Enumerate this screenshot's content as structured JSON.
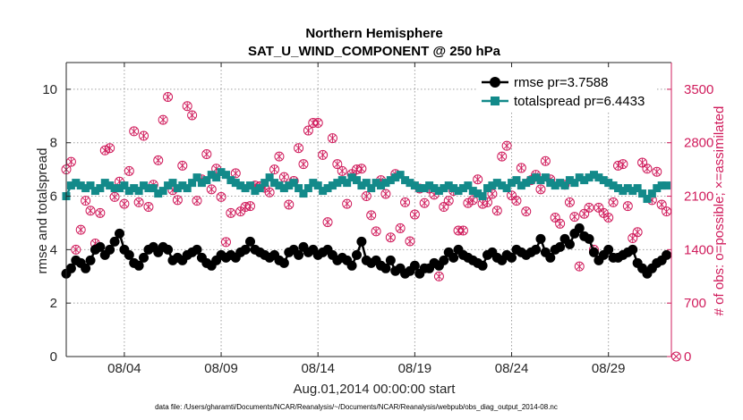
{
  "chart_data": {
    "type": "line",
    "title": "Northern Hemisphere",
    "subtitle": "SAT_U_WIND_COMPONENT @ 250 hPa",
    "xlabel": "Aug.01,2014 00:00:00 start",
    "ylabel": "rmse and totalspread",
    "y2label": "# of obs: o=possible; ×=assimilated",
    "xlim": [
      0,
      125
    ],
    "ylim": [
      0,
      11
    ],
    "y2lim": [
      0,
      3850
    ],
    "x_ticks": [
      {
        "value": 12,
        "label": "08/04"
      },
      {
        "value": 32,
        "label": "08/09"
      },
      {
        "value": 52,
        "label": "08/14"
      },
      {
        "value": 72,
        "label": "08/19"
      },
      {
        "value": 92,
        "label": "08/24"
      },
      {
        "value": 112,
        "label": "08/29"
      }
    ],
    "y_ticks": [
      {
        "value": 0,
        "label": "0"
      },
      {
        "value": 2,
        "label": "2"
      },
      {
        "value": 4,
        "label": "4"
      },
      {
        "value": 6,
        "label": "6"
      },
      {
        "value": 8,
        "label": "8"
      },
      {
        "value": 10,
        "label": "10"
      }
    ],
    "y2_ticks": [
      {
        "value": 0,
        "label": "0"
      },
      {
        "value": 700,
        "label": "700"
      },
      {
        "value": 1400,
        "label": "1400"
      },
      {
        "value": 2100,
        "label": "2100"
      },
      {
        "value": 2800,
        "label": "2800"
      },
      {
        "value": 3500,
        "label": "3500"
      }
    ],
    "legend": {
      "position": "top-right",
      "entries": [
        "rmse pr=3.7588",
        "totalspread pr=6.4433"
      ]
    },
    "footnote": "data file: /Users/gharamti/Documents/NCAR/Reanalysis/~/Documents/NCAR/Reanalysis/webpub/obs_diag_output_2014-08.nc",
    "colors": {
      "rmse": "#000000",
      "totalspread": "#138a8a",
      "obs": "#d01c5c"
    },
    "series": [
      {
        "name": "rmse",
        "axis": "left",
        "x": [
          0,
          1,
          2,
          3,
          4,
          5,
          6,
          7,
          8,
          9,
          10,
          11,
          12,
          13,
          14,
          15,
          16,
          17,
          18,
          19,
          20,
          21,
          22,
          23,
          24,
          25,
          26,
          27,
          28,
          29,
          30,
          31,
          32,
          33,
          34,
          35,
          36,
          37,
          38,
          39,
          40,
          41,
          42,
          43,
          44,
          45,
          46,
          47,
          48,
          49,
          50,
          51,
          52,
          53,
          54,
          55,
          56,
          57,
          58,
          59,
          60,
          61,
          62,
          63,
          64,
          65,
          66,
          67,
          68,
          69,
          70,
          71,
          72,
          73,
          74,
          75,
          76,
          77,
          78,
          79,
          80,
          81,
          82,
          83,
          84,
          85,
          86,
          87,
          88,
          89,
          90,
          91,
          92,
          93,
          94,
          95,
          96,
          97,
          98,
          99,
          100,
          101,
          102,
          103,
          104,
          105,
          106,
          107,
          108,
          109,
          110,
          111,
          112,
          113,
          114,
          115,
          116,
          117,
          118,
          119,
          120,
          121,
          122,
          123,
          124
        ],
        "y": [
          3.1,
          3.3,
          3.6,
          3.5,
          3.3,
          3.6,
          4.0,
          4.1,
          3.8,
          4.0,
          4.3,
          4.6,
          4.0,
          3.8,
          3.5,
          3.4,
          3.7,
          4.0,
          4.1,
          3.9,
          4.1,
          4.0,
          3.6,
          3.7,
          3.6,
          3.8,
          3.9,
          4.0,
          3.7,
          3.5,
          3.4,
          3.6,
          3.8,
          3.7,
          3.8,
          3.7,
          3.9,
          4.0,
          4.3,
          4.0,
          3.9,
          3.8,
          3.7,
          3.8,
          3.6,
          3.5,
          3.9,
          4.0,
          3.8,
          4.1,
          3.9,
          4.0,
          3.8,
          3.9,
          4.0,
          3.8,
          3.6,
          3.7,
          3.6,
          3.4,
          3.8,
          4.3,
          3.6,
          3.5,
          3.6,
          3.4,
          3.3,
          3.6,
          3.2,
          3.3,
          3.1,
          3.2,
          3.4,
          3.1,
          3.3,
          3.3,
          3.5,
          3.4,
          3.6,
          3.9,
          3.7,
          4.0,
          3.8,
          3.7,
          3.6,
          3.5,
          3.4,
          3.8,
          3.9,
          3.7,
          3.6,
          3.8,
          3.7,
          4.0,
          3.9,
          3.8,
          3.9,
          4.0,
          4.4,
          3.9,
          3.7,
          4.0,
          4.1,
          4.4,
          4.2,
          4.6,
          4.8,
          4.5,
          4.4,
          3.9,
          3.6,
          3.8,
          4.0,
          3.7,
          3.7,
          3.8,
          3.9,
          4.0,
          3.5,
          3.3,
          3.1,
          3.3,
          3.5,
          3.6,
          3.8
        ]
      },
      {
        "name": "totalspread",
        "axis": "left",
        "x": [
          0,
          1,
          2,
          3,
          4,
          5,
          6,
          7,
          8,
          9,
          10,
          11,
          12,
          13,
          14,
          15,
          16,
          17,
          18,
          19,
          20,
          21,
          22,
          23,
          24,
          25,
          26,
          27,
          28,
          29,
          30,
          31,
          32,
          33,
          34,
          35,
          36,
          37,
          38,
          39,
          40,
          41,
          42,
          43,
          44,
          45,
          46,
          47,
          48,
          49,
          50,
          51,
          52,
          53,
          54,
          55,
          56,
          57,
          58,
          59,
          60,
          61,
          62,
          63,
          64,
          65,
          66,
          67,
          68,
          69,
          70,
          71,
          72,
          73,
          74,
          75,
          76,
          77,
          78,
          79,
          80,
          81,
          82,
          83,
          84,
          85,
          86,
          87,
          88,
          89,
          90,
          91,
          92,
          93,
          94,
          95,
          96,
          97,
          98,
          99,
          100,
          101,
          102,
          103,
          104,
          105,
          106,
          107,
          108,
          109,
          110,
          111,
          112,
          113,
          114,
          115,
          116,
          117,
          118,
          119,
          120,
          121,
          122,
          123,
          124
        ],
        "y": [
          6.0,
          6.4,
          6.5,
          6.4,
          6.3,
          6.4,
          6.2,
          6.3,
          6.5,
          6.4,
          6.3,
          6.3,
          6.4,
          6.2,
          6.3,
          6.2,
          6.4,
          6.3,
          6.3,
          6.1,
          6.2,
          6.4,
          6.5,
          6.3,
          6.4,
          6.3,
          6.5,
          6.7,
          6.5,
          6.6,
          6.8,
          6.7,
          6.9,
          6.8,
          6.6,
          6.5,
          6.4,
          6.3,
          6.4,
          6.2,
          6.3,
          6.5,
          6.7,
          6.5,
          6.4,
          6.3,
          6.4,
          6.5,
          6.3,
          6.1,
          6.3,
          6.5,
          6.4,
          6.2,
          6.3,
          6.4,
          6.5,
          6.6,
          6.5,
          6.7,
          6.6,
          6.4,
          6.5,
          6.3,
          6.5,
          6.4,
          6.5,
          6.6,
          6.7,
          6.8,
          6.6,
          6.5,
          6.4,
          6.3,
          6.3,
          6.4,
          6.3,
          6.2,
          6.3,
          6.4,
          6.3,
          6.2,
          6.3,
          6.4,
          6.2,
          6.1,
          6.0,
          6.3,
          6.4,
          6.5,
          6.4,
          6.3,
          6.5,
          6.6,
          6.4,
          6.5,
          6.6,
          6.7,
          6.6,
          6.7,
          6.5,
          6.4,
          6.5,
          6.4,
          6.6,
          6.5,
          6.7,
          6.6,
          6.7,
          6.8,
          6.7,
          6.6,
          6.5,
          6.4,
          6.3,
          6.2,
          6.3,
          6.2,
          6.3,
          6.1,
          5.9,
          6.1,
          6.3,
          6.4,
          6.4
        ]
      },
      {
        "name": "# obs possible",
        "axis": "right",
        "x": [
          0,
          1,
          2,
          3,
          4,
          5,
          6,
          7,
          8,
          9,
          10,
          11,
          12,
          13,
          14,
          15,
          16,
          17,
          18,
          19,
          20,
          21,
          22,
          23,
          24,
          25,
          26,
          27,
          28,
          29,
          30,
          31,
          32,
          33,
          34,
          35,
          36,
          37,
          38,
          39,
          40,
          41,
          42,
          43,
          44,
          45,
          46,
          47,
          48,
          49,
          50,
          51,
          52,
          53,
          54,
          55,
          56,
          57,
          58,
          59,
          60,
          61,
          62,
          63,
          64,
          65,
          66,
          67,
          68,
          69,
          70,
          71,
          72,
          73,
          74,
          75,
          76,
          77,
          78,
          79,
          80,
          81,
          82,
          83,
          84,
          85,
          86,
          87,
          88,
          89,
          90,
          91,
          92,
          93,
          94,
          95,
          96,
          97,
          98,
          99,
          100,
          101,
          102,
          103,
          104,
          105,
          106,
          107,
          108,
          109,
          110,
          111,
          112,
          113,
          114,
          115,
          116,
          117,
          118,
          119,
          120,
          121,
          122,
          123,
          124
        ],
        "y": [
          2450,
          2550,
          1400,
          1660,
          2040,
          1910,
          1480,
          1880,
          2700,
          2730,
          2090,
          2290,
          2000,
          2430,
          2950,
          2020,
          2890,
          1960,
          2250,
          2570,
          3100,
          3400,
          2180,
          2050,
          2500,
          3280,
          3160,
          2040,
          2320,
          2650,
          2190,
          2460,
          2090,
          1500,
          1880,
          2400,
          1900,
          1960,
          1970,
          2240,
          2230,
          2210,
          2150,
          2450,
          2620,
          2350,
          1990,
          2300,
          2730,
          2520,
          2960,
          3060,
          3060,
          2640,
          1760,
          2860,
          2520,
          2430,
          2000,
          2390,
          2450,
          2460,
          2100,
          1850,
          1640,
          2310,
          2130,
          1560,
          2390,
          1680,
          2020,
          1510,
          1860,
          2200,
          2010,
          2200,
          2120,
          1050,
          1960,
          2040,
          2170,
          1650,
          1650,
          2010,
          2050,
          2320,
          2000,
          2020,
          2130,
          1910,
          2620,
          2760,
          2110,
          2040,
          2470,
          1900,
          2310,
          2380,
          2190,
          2560,
          2320,
          1820,
          1740,
          2250,
          2020,
          1830,
          1180,
          1870,
          1950,
          1400,
          1950,
          1880,
          1820,
          2020,
          2500,
          2520,
          1970,
          1550,
          1630,
          2540,
          2460,
          2050,
          2420,
          1990,
          1900
        ]
      },
      {
        "name": "# obs assimilated",
        "axis": "right",
        "x": [
          0,
          1,
          2,
          3,
          4,
          5,
          6,
          7,
          8,
          9,
          10,
          11,
          12,
          13,
          14,
          15,
          16,
          17,
          18,
          19,
          20,
          21,
          22,
          23,
          24,
          25,
          26,
          27,
          28,
          29,
          30,
          31,
          32,
          33,
          34,
          35,
          36,
          37,
          38,
          39,
          40,
          41,
          42,
          43,
          44,
          45,
          46,
          47,
          48,
          49,
          50,
          51,
          52,
          53,
          54,
          55,
          56,
          57,
          58,
          59,
          60,
          61,
          62,
          63,
          64,
          65,
          66,
          67,
          68,
          69,
          70,
          71,
          72,
          73,
          74,
          75,
          76,
          77,
          78,
          79,
          80,
          81,
          82,
          83,
          84,
          85,
          86,
          87,
          88,
          89,
          90,
          91,
          92,
          93,
          94,
          95,
          96,
          97,
          98,
          99,
          100,
          101,
          102,
          103,
          104,
          105,
          106,
          107,
          108,
          109,
          110,
          111,
          112,
          113,
          114,
          115,
          116,
          117,
          118,
          119,
          120,
          121,
          122,
          123,
          124
        ],
        "y": [
          2450,
          2550,
          1400,
          1660,
          2040,
          1910,
          1480,
          1880,
          2700,
          2730,
          2090,
          2290,
          2000,
          2430,
          2950,
          2020,
          2890,
          1960,
          2250,
          2570,
          3100,
          3400,
          2180,
          2050,
          2500,
          3280,
          3160,
          2040,
          2320,
          2650,
          2190,
          2460,
          2090,
          1500,
          1880,
          2400,
          1900,
          1960,
          1970,
          2240,
          2230,
          2210,
          2150,
          2450,
          2620,
          2350,
          1990,
          2300,
          2730,
          2520,
          2960,
          3060,
          3060,
          2640,
          1760,
          2860,
          2520,
          2430,
          2000,
          2390,
          2450,
          2460,
          2100,
          1850,
          1640,
          2310,
          2130,
          1560,
          2390,
          1680,
          2020,
          1510,
          1860,
          2200,
          2010,
          2200,
          2120,
          1050,
          1960,
          2040,
          2170,
          1650,
          1650,
          2010,
          2050,
          2320,
          2000,
          2020,
          2130,
          1910,
          2620,
          2760,
          2110,
          2040,
          2470,
          1900,
          2310,
          2380,
          2190,
          2560,
          2320,
          1820,
          1740,
          2250,
          2020,
          1830,
          1180,
          1870,
          1950,
          1400,
          1950,
          1880,
          1820,
          2020,
          2500,
          2520,
          1970,
          1550,
          1630,
          2540,
          2460,
          2050,
          2420,
          1990,
          1900
        ]
      }
    ],
    "trailing_obs": {
      "x": 126,
      "possible": 0,
      "assimilated": 0
    }
  }
}
